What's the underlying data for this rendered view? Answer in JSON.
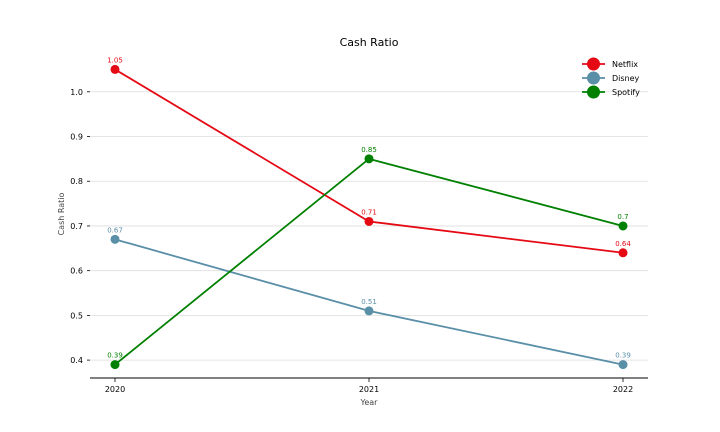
{
  "chart_data": {
    "type": "line",
    "title": "Cash Ratio",
    "xlabel": "Year",
    "ylabel": "Cash Ratio",
    "x": [
      "2020",
      "2021",
      "2022"
    ],
    "ylim": [
      0.36,
      1.08
    ],
    "yticks": [
      "0.4",
      "0.5",
      "0.6",
      "0.7",
      "0.8",
      "0.9",
      "1.0"
    ],
    "grid": "horizontal",
    "legend_position": "top-right",
    "series": [
      {
        "name": "Netflix",
        "color": "#e50914",
        "values": [
          1.05,
          0.71,
          0.64
        ],
        "labels": [
          "1.05",
          "0.71",
          "0.64"
        ]
      },
      {
        "name": "Disney",
        "color": "#5a8fa8",
        "values": [
          0.67,
          0.51,
          0.39
        ],
        "labels": [
          "0.67",
          "0.51",
          "0.39"
        ]
      },
      {
        "name": "Spotify",
        "color": "#008000",
        "values": [
          0.39,
          0.85,
          0.7
        ],
        "labels": [
          "0.39",
          "0.85",
          "0.7"
        ]
      }
    ]
  }
}
